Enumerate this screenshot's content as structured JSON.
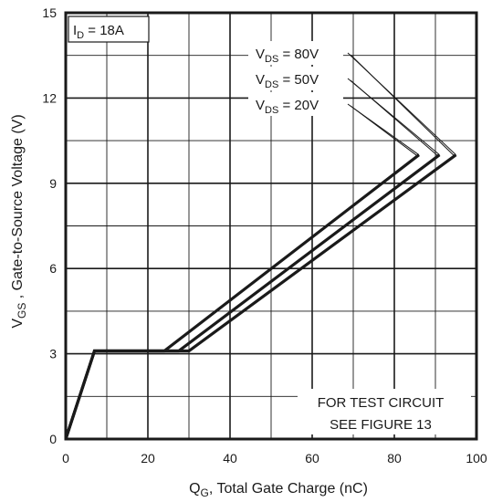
{
  "chart_data": {
    "type": "line",
    "xlabel_main": "Q",
    "xlabel_sub": "G",
    "xlabel_rest": ", Total Gate Charge (nC)",
    "ylabel_main": "V",
    "ylabel_sub": "GS",
    "ylabel_rest": " , Gate-to-Source Voltage (V)",
    "xlim": [
      0,
      100
    ],
    "ylim": [
      0,
      15
    ],
    "x_ticks": [
      0,
      20,
      40,
      60,
      80,
      100
    ],
    "y_ticks": [
      0,
      3,
      6,
      9,
      12,
      15
    ],
    "x_minor_step": 10,
    "y_minor_step": 1.5,
    "grid": true,
    "condition": {
      "main": "I",
      "sub": "D",
      "rest": " = 18A"
    },
    "note_lines": [
      "FOR TEST CIRCUIT",
      "SEE FIGURE 13"
    ],
    "series": [
      {
        "name_main": "V",
        "name_sub": "DS",
        "name_rest": " = 80V",
        "points": [
          [
            0,
            0
          ],
          [
            7,
            3.1
          ],
          [
            30,
            3.1
          ],
          [
            95,
            10
          ]
        ]
      },
      {
        "name_main": "V",
        "name_sub": "DS",
        "name_rest": " = 50V",
        "points": [
          [
            0,
            0
          ],
          [
            7,
            3.1
          ],
          [
            27.5,
            3.1
          ],
          [
            91,
            10
          ]
        ]
      },
      {
        "name_main": "V",
        "name_sub": "DS",
        "name_rest": " = 20V",
        "points": [
          [
            0,
            0
          ],
          [
            7,
            3.1
          ],
          [
            24,
            3.1
          ],
          [
            86,
            10
          ]
        ]
      }
    ]
  }
}
